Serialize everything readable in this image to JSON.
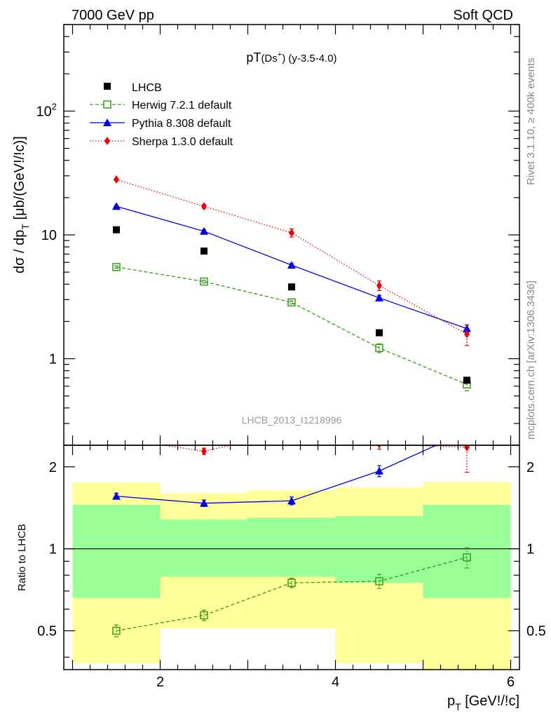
{
  "header": {
    "left": "7000 GeV pp",
    "right": "Soft QCD"
  },
  "side_labels": {
    "rivet": "Rivet 3.1.10, ≥ 400k events",
    "mcplots": "mcplots.cern.ch [arXiv:1306.3436]"
  },
  "colors": {
    "lhcb": "#000000",
    "herwig": "#3a9a1a",
    "pythia": "#0000e0",
    "sherpa": "#ee0000",
    "band_outer": "#ffff99",
    "band_inner": "#99ff99"
  },
  "chart_data": [
    {
      "type": "line",
      "panel": "main",
      "title": "pT(Ds⁺) (y-3.5-4.0)",
      "title_parts": {
        "main": "pT",
        "paren": "(Ds",
        "sup": "+",
        "close": ")",
        "suffix": " (y-3.5-4.0)"
      },
      "ylabel": "dσ / dp_T [μb/(GeV!/!c)]",
      "ylabel_parts": {
        "pre": "dσ / dp",
        "sub": "T",
        "post": " [μb/(GeV!/!c)]"
      },
      "y_scale": "log",
      "xlim": [
        0.9,
        6.1
      ],
      "ylim": [
        0.2,
        500
      ],
      "y_ticks": [
        {
          "value": 1,
          "label": "1"
        },
        {
          "value": 10,
          "label": "10"
        },
        {
          "value": 100,
          "label": "10",
          "sup": "2"
        }
      ],
      "watermark": "LHCB_2013_I1218996",
      "legend_position": "top-left",
      "series": [
        {
          "name": "LHCB",
          "style": "markers",
          "x": [
            1.5,
            2.5,
            3.5,
            4.5,
            5.5
          ],
          "y": [
            11.0,
            7.4,
            3.8,
            1.62,
            0.67
          ]
        },
        {
          "name": "Herwig 7.2.1 default",
          "style": "dashed",
          "x": [
            1.5,
            2.5,
            3.5,
            4.5,
            5.5
          ],
          "y": [
            5.5,
            4.2,
            2.85,
            1.22,
            0.62
          ],
          "yerr": [
            0.12,
            0.1,
            0.08,
            0.1,
            0.07
          ]
        },
        {
          "name": "Pythia 8.308 default",
          "style": "solid",
          "x": [
            1.5,
            2.5,
            3.5,
            4.5,
            5.5
          ],
          "y": [
            17.0,
            10.7,
            5.7,
            3.1,
            1.75
          ],
          "yerr": [
            0.3,
            0.3,
            0.15,
            0.15,
            0.12
          ]
        },
        {
          "name": "Sherpa 1.3.0 default",
          "style": "dotted",
          "x": [
            1.5,
            2.5,
            3.5,
            4.5,
            5.5
          ],
          "y": [
            28.0,
            17.0,
            10.4,
            3.9,
            1.58
          ],
          "yerr": [
            0.6,
            0.6,
            0.8,
            0.35,
            0.3
          ]
        }
      ]
    },
    {
      "type": "line",
      "panel": "ratio",
      "ylabel": "Ratio to LHCB",
      "xlabel": "p_T [GeV!/!c]",
      "xlabel_parts": {
        "pre": "p",
        "sub": "T",
        "post": " [GeV!/!c]"
      },
      "y_scale": "log",
      "xlim": [
        0.9,
        6.1
      ],
      "ylim": [
        0.36,
        2.4
      ],
      "y_ticks": [
        {
          "value": 0.5,
          "label": "0.5"
        },
        {
          "value": 1,
          "label": "1"
        },
        {
          "value": 2,
          "label": "2"
        }
      ],
      "x_ticks": [
        {
          "value": 2,
          "label": "2"
        },
        {
          "value": 4,
          "label": "4"
        },
        {
          "value": 6,
          "label": "6"
        }
      ],
      "bands": [
        {
          "x0": 1,
          "x1": 2,
          "outer": [
            0.38,
            1.75
          ],
          "inner": [
            0.66,
            1.45
          ]
        },
        {
          "x0": 2,
          "x1": 3,
          "outer": [
            0.51,
            1.6
          ],
          "inner": [
            0.79,
            1.28
          ]
        },
        {
          "x0": 3,
          "x1": 4,
          "outer": [
            0.51,
            1.64
          ],
          "inner": [
            0.79,
            1.3
          ]
        },
        {
          "x0": 4,
          "x1": 5,
          "outer": [
            0.38,
            1.68
          ],
          "inner": [
            0.75,
            1.32
          ]
        },
        {
          "x0": 5,
          "x1": 6,
          "outer": [
            0.36,
            1.76
          ],
          "inner": [
            0.66,
            1.45
          ]
        }
      ],
      "series": [
        {
          "name": "Herwig 7.2.1 default",
          "style": "dashed",
          "x": [
            1.5,
            2.5,
            3.5,
            4.5,
            5.5
          ],
          "y": [
            0.5,
            0.57,
            0.75,
            0.76,
            0.93
          ],
          "yerr": [
            0.025,
            0.025,
            0.03,
            0.045,
            0.08
          ]
        },
        {
          "name": "Pythia 8.308 default",
          "style": "solid",
          "x": [
            1.5,
            2.5,
            3.5,
            4.5,
            5.5
          ],
          "y": [
            1.56,
            1.47,
            1.5,
            1.93,
            2.7
          ],
          "yerr": [
            0.04,
            0.04,
            0.05,
            0.09,
            0.1
          ]
        },
        {
          "name": "Sherpa 1.3.0 default",
          "style": "dotted",
          "x": [
            1.5,
            2.5,
            3.5,
            4.5,
            5.5
          ],
          "y": [
            2.55,
            2.28,
            2.7,
            2.42,
            2.36
          ],
          "yerr": [
            0.05,
            0.06,
            0.1,
            0.1,
            0.45
          ]
        }
      ]
    }
  ]
}
